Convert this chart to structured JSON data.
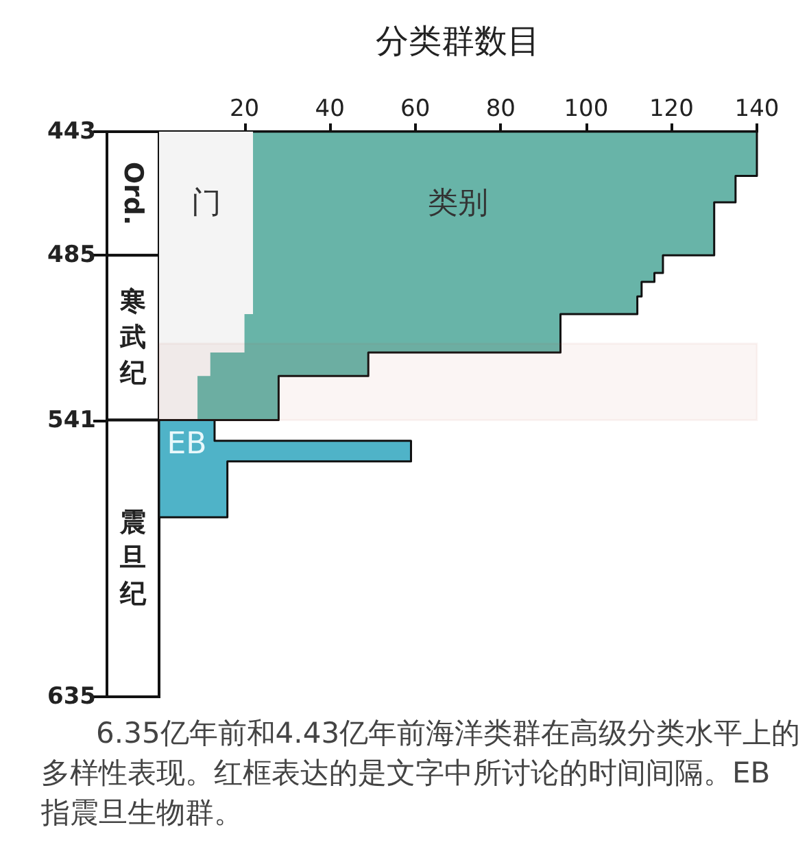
{
  "chart_data": {
    "type": "area",
    "orientation": "horizontal",
    "xlabel": "分类群数目",
    "xlim": [
      0,
      140
    ],
    "xticks": [
      20,
      40,
      60,
      80,
      100,
      120,
      140
    ],
    "ylim": [
      635,
      443
    ],
    "yticks": [
      443,
      485,
      541,
      635
    ],
    "series": [
      {
        "name": "类别",
        "color": "#68b4a8",
        "x": [
          443,
          458,
          467,
          485,
          491,
          494,
          499,
          505,
          518,
          526,
          541
        ],
        "values": [
          140,
          135,
          130,
          118,
          116,
          113,
          112,
          94,
          49,
          28,
          28
        ]
      },
      {
        "name": "门",
        "color": "#f4f4f4",
        "x": [
          443,
          505,
          518,
          526,
          541
        ],
        "values": [
          22,
          20,
          12,
          9,
          9
        ]
      },
      {
        "name": "EB",
        "color": "#4fb3c8",
        "x": [
          541,
          548,
          555,
          574
        ],
        "values": [
          13,
          59,
          16,
          16
        ]
      }
    ],
    "bands": [
      {
        "axis": "y",
        "from": 515,
        "to": 541,
        "color": "#b5533c"
      }
    ],
    "grid": false,
    "legend": false,
    "annotations": [
      "Ord.",
      "寒武纪",
      "震旦纪",
      "6.35亿年前和4.43亿年前海洋类群在高级分类水平上的多样性表现。红框表达的是文字中所讨论的时间间隔。EB 指震旦生物群。"
    ]
  }
}
